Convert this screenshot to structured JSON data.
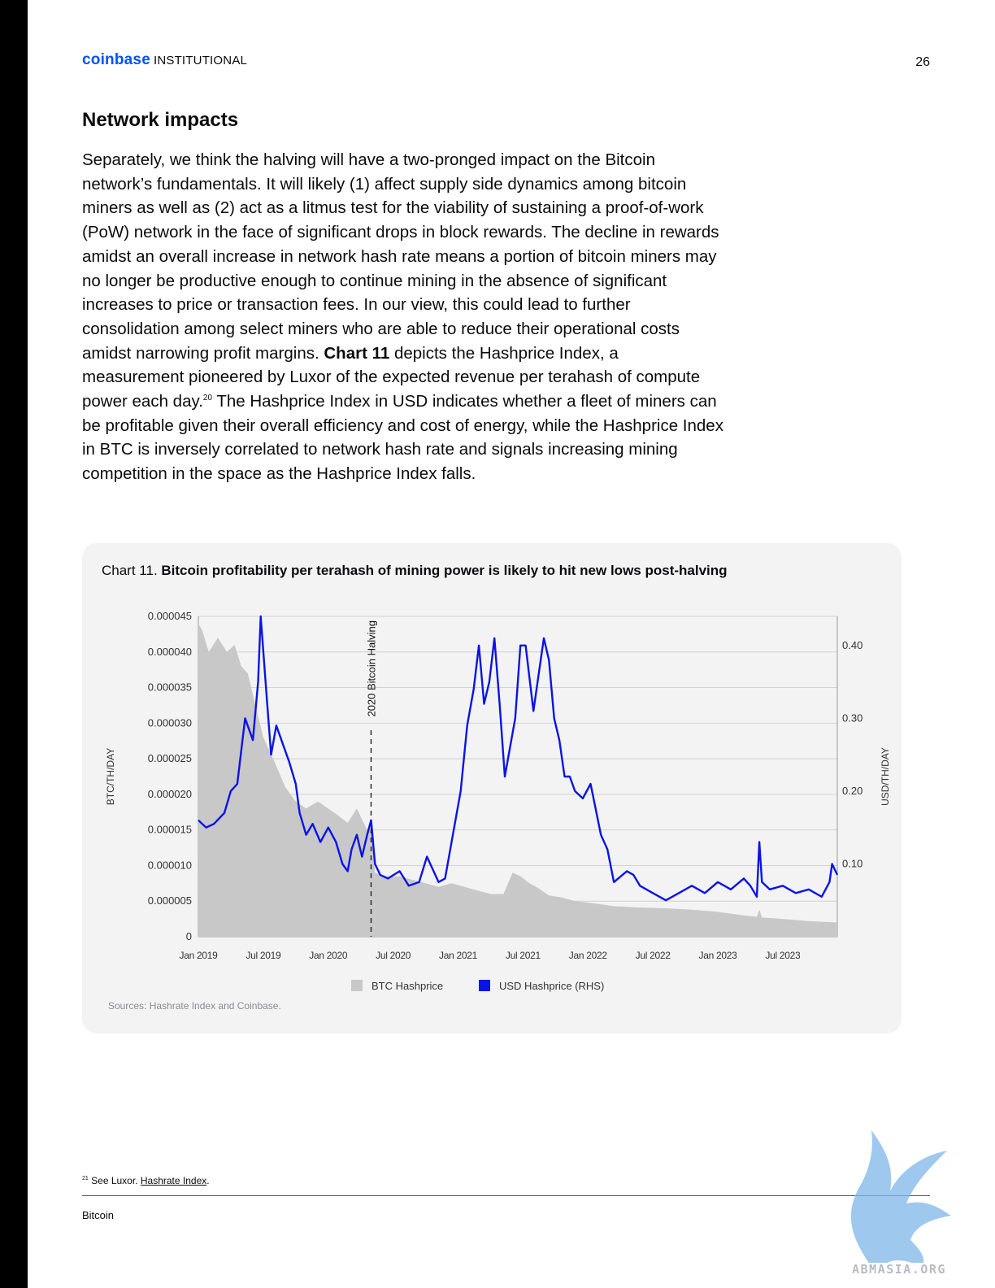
{
  "header": {
    "brand_logo": "coinbase",
    "brand_suffix": "INSTITUTIONAL",
    "page_number": "26"
  },
  "section_title": "Network impacts",
  "body": {
    "part1": "Separately, we think the halving will have a two-pronged impact on the Bitcoin network’s fundamentals. It will likely (1) affect supply side dynamics among bitcoin miners as well as (2) act as a litmus test for the viability of sustaining a proof-of-work (PoW) network in the face of significant drops in block rewards. The decline in rewards amidst an overall increase in network hash rate means a portion of bitcoin miners may no longer be productive enough to continue mining in the absence of significant increases to price or transaction fees. In our view, this could lead to further consolidation among select miners who are able to reduce their operational costs amidst narrowing profit margins. ",
    "bold_ref": "Chart 11",
    "part2": " depicts the Hashprice Index, a measurement pioneered by Luxor of the expected revenue per terahash of compute power each day.",
    "footnote_ref": "20",
    "part3": " The Hashprice Index in USD indicates whether a fleet of miners can be profitable given their overall efficiency and cost of energy, while the Hashprice Index in BTC is inversely correlated to network hash rate and signals increasing mining competition in the space as the Hashprice Index falls."
  },
  "chart": {
    "label_prefix": "Chart 11. ",
    "label_title": "Bitcoin profitability per terahash of mining power is likely to hit new lows post-halving",
    "sources": "Sources: Hashrate Index and Coinbase."
  },
  "chart_data": {
    "type": "area+line",
    "title": "Bitcoin profitability per terahash of mining power is likely to hit new lows post-halving",
    "ylabel_left": "BTC/TH/DAY",
    "ylabel_right": "USD/TH/DAY",
    "ylim_left": [
      0,
      4.5e-05
    ],
    "ylim_right": [
      0,
      0.44
    ],
    "yticks_left": [
      "0.000045",
      "0.000040",
      "0.000035",
      "0.000030",
      "0.000025",
      "0.000020",
      "0.000015",
      "0.000010",
      "0.000005",
      "0"
    ],
    "yticks_left_values": [
      4.5e-05,
      4e-05,
      3.5e-05,
      3e-05,
      2.5e-05,
      2e-05,
      1.5e-05,
      1e-05,
      5e-06,
      0
    ],
    "yticks_right": [
      "0.40",
      "0.30",
      "0.20",
      "0.10"
    ],
    "yticks_right_values": [
      0.4,
      0.3,
      0.2,
      0.1
    ],
    "xlim": [
      2019.0,
      2023.92
    ],
    "xticks": [
      "Jan 2019",
      "Jul 2019",
      "Jan 2020",
      "Jul 2020",
      "Jan 2021",
      "Jul 2021",
      "Jan 2022",
      "Jul 2022",
      "Jan 2023",
      "Jul 2023"
    ],
    "xticks_values": [
      2019.0,
      2019.5,
      2020.0,
      2020.5,
      2021.0,
      2021.5,
      2022.0,
      2022.5,
      2023.0,
      2023.5
    ],
    "annotation": {
      "label": "2020 Bitcoin Halving",
      "x": 2020.33
    },
    "legend": "bottom-center",
    "grid": true,
    "series": [
      {
        "name": "BTC Hashprice",
        "axis": "left",
        "color": "#c8c8c8",
        "x": [
          2019.0,
          2019.03,
          2019.08,
          2019.15,
          2019.22,
          2019.28,
          2019.33,
          2019.38,
          2019.42,
          2019.5,
          2019.55,
          2019.6,
          2019.67,
          2019.75,
          2019.83,
          2019.92,
          2020.0,
          2020.08,
          2020.15,
          2020.22,
          2020.3,
          2020.33,
          2020.36,
          2020.45,
          2020.55,
          2020.65,
          2020.75,
          2020.85,
          2020.95,
          2021.05,
          2021.15,
          2021.25,
          2021.35,
          2021.42,
          2021.48,
          2021.55,
          2021.62,
          2021.7,
          2021.8,
          2021.9,
          2022.0,
          2022.2,
          2022.4,
          2022.6,
          2022.8,
          2023.0,
          2023.2,
          2023.3,
          2023.32,
          2023.34,
          2023.5,
          2023.7,
          2023.92
        ],
        "values": [
          4.4e-05,
          4.3e-05,
          4e-05,
          4.2e-05,
          4e-05,
          4.1e-05,
          3.8e-05,
          3.7e-05,
          3.4e-05,
          2.8e-05,
          2.6e-05,
          2.4e-05,
          2.1e-05,
          1.9e-05,
          1.8e-05,
          1.9e-05,
          1.8e-05,
          1.7e-05,
          1.6e-05,
          1.8e-05,
          1.5e-05,
          1.6e-05,
          9e-06,
          8.5e-06,
          8.5e-06,
          8e-06,
          7.5e-06,
          7e-06,
          7.5e-06,
          7e-06,
          6.5e-06,
          6e-06,
          6e-06,
          9e-06,
          8.5e-06,
          7.5e-06,
          6.8e-06,
          5.8e-06,
          5.5e-06,
          5e-06,
          4.8e-06,
          4.3e-06,
          4.1e-06,
          4e-06,
          3.8e-06,
          3.5e-06,
          3e-06,
          2.8e-06,
          3.8e-06,
          2.7e-06,
          2.5e-06,
          2.2e-06,
          2e-06
        ]
      },
      {
        "name": "USD Hashprice (RHS)",
        "axis": "right",
        "color": "#0a14e6",
        "x": [
          2019.0,
          2019.06,
          2019.12,
          2019.2,
          2019.25,
          2019.3,
          2019.36,
          2019.42,
          2019.46,
          2019.48,
          2019.53,
          2019.56,
          2019.6,
          2019.66,
          2019.7,
          2019.75,
          2019.78,
          2019.83,
          2019.88,
          2019.94,
          2020.0,
          2020.06,
          2020.11,
          2020.15,
          2020.18,
          2020.22,
          2020.26,
          2020.3,
          2020.33,
          2020.36,
          2020.4,
          2020.46,
          2020.55,
          2020.62,
          2020.7,
          2020.76,
          2020.85,
          2020.9,
          2020.96,
          2021.02,
          2021.07,
          2021.12,
          2021.16,
          2021.2,
          2021.24,
          2021.28,
          2021.32,
          2021.36,
          2021.4,
          2021.44,
          2021.48,
          2021.52,
          2021.58,
          2021.62,
          2021.66,
          2021.7,
          2021.74,
          2021.78,
          2021.82,
          2021.86,
          2021.9,
          2021.96,
          2022.02,
          2022.1,
          2022.15,
          2022.2,
          2022.3,
          2022.35,
          2022.4,
          2022.5,
          2022.6,
          2022.7,
          2022.8,
          2022.9,
          2023.0,
          2023.1,
          2023.2,
          2023.25,
          2023.3,
          2023.32,
          2023.34,
          2023.4,
          2023.5,
          2023.6,
          2023.7,
          2023.8,
          2023.86,
          2023.88,
          2023.92
        ],
        "values": [
          0.16,
          0.15,
          0.155,
          0.17,
          0.2,
          0.21,
          0.3,
          0.27,
          0.35,
          0.44,
          0.32,
          0.25,
          0.29,
          0.26,
          0.24,
          0.21,
          0.17,
          0.14,
          0.155,
          0.13,
          0.15,
          0.13,
          0.1,
          0.09,
          0.12,
          0.14,
          0.11,
          0.14,
          0.16,
          0.1,
          0.085,
          0.08,
          0.09,
          0.07,
          0.075,
          0.11,
          0.075,
          0.08,
          0.14,
          0.2,
          0.29,
          0.34,
          0.4,
          0.32,
          0.35,
          0.41,
          0.32,
          0.22,
          0.26,
          0.3,
          0.4,
          0.4,
          0.31,
          0.36,
          0.41,
          0.38,
          0.3,
          0.27,
          0.22,
          0.22,
          0.2,
          0.19,
          0.21,
          0.14,
          0.12,
          0.075,
          0.09,
          0.085,
          0.07,
          0.06,
          0.05,
          0.06,
          0.07,
          0.06,
          0.075,
          0.065,
          0.08,
          0.07,
          0.055,
          0.13,
          0.075,
          0.065,
          0.07,
          0.06,
          0.065,
          0.055,
          0.075,
          0.1,
          0.085
        ]
      }
    ]
  },
  "footnote": {
    "number": "21",
    "text": "See Luxor. ",
    "link": "Hashrate Index",
    "after": "."
  },
  "footer": {
    "label": "Bitcoin"
  }
}
